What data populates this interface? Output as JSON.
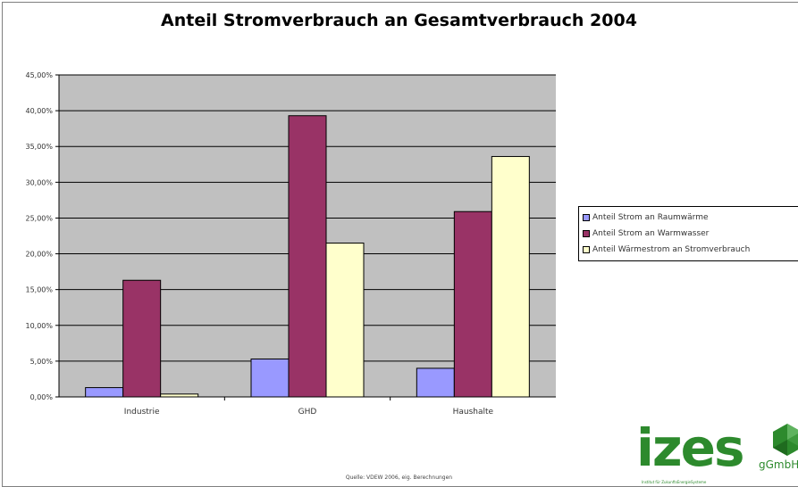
{
  "chart_data": {
    "type": "bar",
    "title": "Anteil Stromverbrauch an Gesamtverbrauch 2004",
    "categories": [
      "Industrie",
      "GHD",
      "Haushalte"
    ],
    "series": [
      {
        "name": "Anteil Strom an Raumwärme",
        "values": [
          1.3,
          5.3,
          4.0
        ],
        "color": "#9999ff"
      },
      {
        "name": "Anteil Strom an Warmwasser",
        "values": [
          16.3,
          39.3,
          25.9
        ],
        "color": "#993366"
      },
      {
        "name": "Anteil Wärmestrom an Stromverbrauch",
        "values": [
          0.4,
          21.5,
          33.6
        ],
        "color": "#ffffcc"
      }
    ],
    "ylim": [
      0,
      45
    ],
    "yticks": [
      "0,00%",
      "5,00%",
      "10,00%",
      "15,00%",
      "20,00%",
      "25,00%",
      "30,00%",
      "35,00%",
      "40,00%",
      "45,00%"
    ],
    "grid": true,
    "plot_background": "#c0c0c0",
    "legend_position": "right"
  },
  "source_note": "Quelle: VDEW 2006, eig. Berechnungen",
  "logo": {
    "name": "izes",
    "suffix": "gGmbH",
    "tagline": "Institut für ZukunftsEnergieSysteme",
    "color": "#2d8a2d"
  }
}
